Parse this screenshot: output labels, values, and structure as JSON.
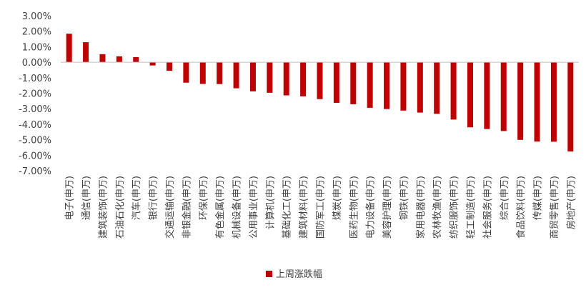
{
  "chart_data": {
    "type": "bar",
    "categories": [
      "电子(申万)",
      "通信(申万)",
      "建筑装饰(申万)",
      "石油石化(申万)",
      "汽车(申万)",
      "银行(申万)",
      "交通运输(申万)",
      "非银金融(申万)",
      "环保(申万)",
      "有色金属(申万)",
      "机械设备(申万)",
      "公用事业(申万)",
      "计算机(申万)",
      "基础化工(申万)",
      "建筑材料(申万)",
      "国防军工(申万)",
      "煤炭(申万)",
      "医药生物(申万)",
      "电力设备(申万)",
      "美容护理(申万)",
      "钢铁(申万)",
      "家用电器(申万)",
      "农林牧渔(申万)",
      "纺织服饰(申万)",
      "轻工制造(申万)",
      "社会服务(申万)",
      "综合(申万)",
      "食品饮料(申万)",
      "传媒(申万)",
      "商贸零售(申万)",
      "房地产(申万)"
    ],
    "series": [
      {
        "name": "上周涨跌幅",
        "color": "#c00000",
        "values": [
          1.84,
          1.29,
          0.52,
          0.38,
          0.33,
          -0.21,
          -0.55,
          -1.32,
          -1.4,
          -1.41,
          -1.68,
          -1.88,
          -1.97,
          -2.14,
          -2.2,
          -2.38,
          -2.62,
          -2.71,
          -2.94,
          -3.02,
          -3.12,
          -3.25,
          -3.33,
          -3.7,
          -4.2,
          -4.31,
          -4.44,
          -5.01,
          -5.12,
          -5.13,
          -5.76
        ]
      }
    ],
    "ylim": [
      -7,
      3
    ],
    "yticks": [
      3,
      2,
      1,
      0,
      -1,
      -2,
      -3,
      -4,
      -5,
      -6,
      -7
    ],
    "ytick_labels": [
      "3.00%",
      "2.00%",
      "1.00%",
      "0.00%",
      "-1.00%",
      "-2.00%",
      "-3.00%",
      "-4.00%",
      "-5.00%",
      "-6.00%",
      "-7.00%"
    ],
    "grid": false,
    "legend_position": "bottom",
    "title": "",
    "xlabel": "",
    "ylabel": ""
  }
}
